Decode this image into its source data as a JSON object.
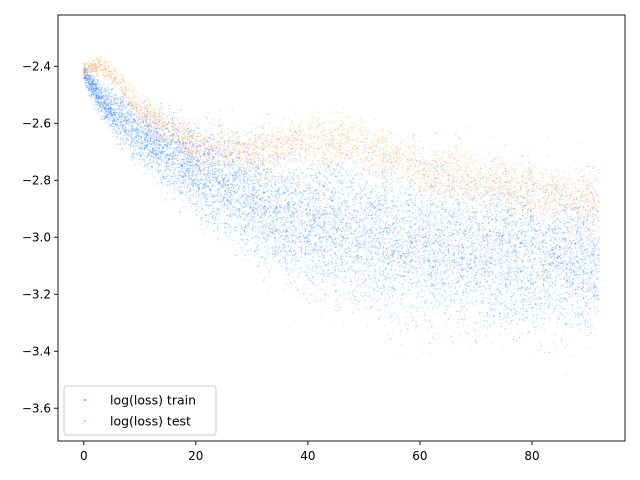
{
  "chart_data": {
    "type": "scatter",
    "title": "",
    "xlabel": "",
    "ylabel": "",
    "xlim": [
      -4.6,
      96.6
    ],
    "ylim": [
      -3.715,
      -2.22
    ],
    "xticks": [
      0,
      20,
      40,
      60,
      80
    ],
    "yticks": [
      -2.4,
      -2.6,
      -2.8,
      -3.0,
      -3.2,
      -3.4,
      -3.6
    ],
    "ytick_labels": [
      "−2.4",
      "−2.6",
      "−2.8",
      "−3.0",
      "−3.2",
      "−3.4",
      "−3.6"
    ],
    "grid": false,
    "legend_position": "lower-left",
    "series": [
      {
        "name": "log(loss) train",
        "color": "#1a75ff",
        "x_range": [
          0,
          92
        ],
        "mean_curve": [
          [
            0,
            -2.42
          ],
          [
            3,
            -2.52
          ],
          [
            10,
            -2.64
          ],
          [
            20,
            -2.76
          ],
          [
            30,
            -2.86
          ],
          [
            40,
            -2.94
          ],
          [
            50,
            -2.98
          ],
          [
            60,
            -3.02
          ],
          [
            70,
            -3.04
          ],
          [
            80,
            -3.06
          ],
          [
            92,
            -3.07
          ]
        ],
        "spread_half_width": [
          [
            0,
            0.03
          ],
          [
            5,
            0.07
          ],
          [
            20,
            0.14
          ],
          [
            40,
            0.22
          ],
          [
            60,
            0.25
          ],
          [
            92,
            0.25
          ]
        ]
      },
      {
        "name": "log(loss) test",
        "color": "#ff9f4a",
        "x_range": [
          0,
          92
        ],
        "mean_curve": [
          [
            0,
            -2.41
          ],
          [
            3,
            -2.4
          ],
          [
            6,
            -2.45
          ],
          [
            10,
            -2.55
          ],
          [
            20,
            -2.68
          ],
          [
            30,
            -2.7
          ],
          [
            40,
            -2.65
          ],
          [
            50,
            -2.68
          ],
          [
            60,
            -2.76
          ],
          [
            70,
            -2.8
          ],
          [
            80,
            -2.84
          ],
          [
            92,
            -2.88
          ]
        ],
        "spread_half_width": [
          [
            0,
            0.02
          ],
          [
            10,
            0.05
          ],
          [
            40,
            0.08
          ],
          [
            92,
            0.1
          ]
        ]
      }
    ]
  }
}
